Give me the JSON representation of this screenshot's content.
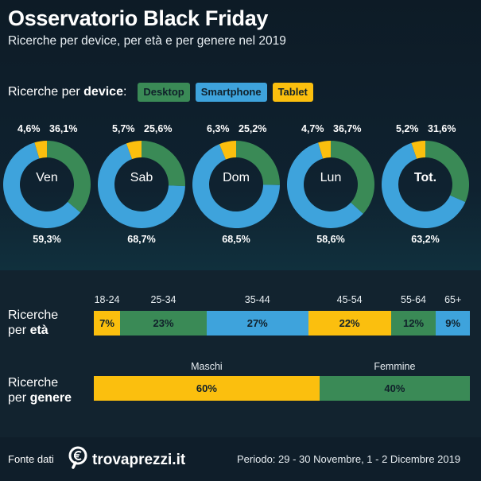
{
  "header": {
    "title": "Osservatorio Black Friday",
    "subtitle": "Ricerche per device, per età e per genere nel 2019"
  },
  "device_section": {
    "label_prefix": "Ricerche per ",
    "label_bold": "device",
    "label_suffix": ":",
    "legend": [
      {
        "name": "Desktop",
        "color": "#3a8a56"
      },
      {
        "name": "Smartphone",
        "color": "#3ea3dc"
      },
      {
        "name": "Tablet",
        "color": "#fbbf0e"
      }
    ]
  },
  "age_section": {
    "label_line1": "Ricerche",
    "label_line2_prefix": "per ",
    "label_line2_bold": "età"
  },
  "gender_section": {
    "label_line1": "Ricerche",
    "label_line2_prefix": "per ",
    "label_line2_bold": "genere"
  },
  "footer": {
    "source_label": "Fonte dati",
    "brand": "trovaprezzi.it",
    "period": "Periodo: 29 - 30 Novembre, 1 - 2 Dicembre 2019"
  },
  "chart_data": [
    {
      "type": "pie",
      "variant": "donut",
      "series_order": [
        "Tablet",
        "Desktop",
        "Smartphone"
      ],
      "colors": {
        "Tablet": "#fbbf0e",
        "Desktop": "#3a8a56",
        "Smartphone": "#3ea3dc"
      },
      "donuts": [
        {
          "center": "Ven",
          "bold": false,
          "values": {
            "Tablet": 4.6,
            "Desktop": 36.1,
            "Smartphone": 59.3
          },
          "labels": {
            "Tablet": "4,6%",
            "Desktop": "36,1%",
            "Smartphone": "59,3%"
          }
        },
        {
          "center": "Sab",
          "bold": false,
          "values": {
            "Tablet": 5.7,
            "Desktop": 25.6,
            "Smartphone": 68.7
          },
          "labels": {
            "Tablet": "5,7%",
            "Desktop": "25,6%",
            "Smartphone": "68,7%"
          }
        },
        {
          "center": "Dom",
          "bold": false,
          "values": {
            "Tablet": 6.3,
            "Desktop": 25.2,
            "Smartphone": 68.5
          },
          "labels": {
            "Tablet": "6,3%",
            "Desktop": "25,2%",
            "Smartphone": "68,5%"
          }
        },
        {
          "center": "Lun",
          "bold": false,
          "values": {
            "Tablet": 4.7,
            "Desktop": 36.7,
            "Smartphone": 58.6
          },
          "labels": {
            "Tablet": "4,7%",
            "Desktop": "36,7%",
            "Smartphone": "58,6%"
          }
        },
        {
          "center": "Tot.",
          "bold": true,
          "values": {
            "Tablet": 5.2,
            "Desktop": 31.6,
            "Smartphone": 63.2
          },
          "labels": {
            "Tablet": "5,2%",
            "Desktop": "31,6%",
            "Smartphone": "63,2%"
          }
        }
      ]
    },
    {
      "type": "bar",
      "variant": "stacked-100",
      "categories": [
        "18-24",
        "25-34",
        "35-44",
        "45-54",
        "55-64",
        "65+"
      ],
      "values": [
        7,
        23,
        27,
        22,
        12,
        9
      ],
      "labels": [
        "7%",
        "23%",
        "27%",
        "22%",
        "12%",
        "9%"
      ],
      "colors": [
        "#fbbf0e",
        "#3a8a56",
        "#3ea3dc",
        "#fbbf0e",
        "#3a8a56",
        "#3ea3dc"
      ]
    },
    {
      "type": "bar",
      "variant": "stacked-100",
      "categories": [
        "Maschi",
        "Femmine"
      ],
      "values": [
        60,
        40
      ],
      "labels": [
        "60%",
        "40%"
      ],
      "colors": [
        "#fbbf0e",
        "#3a8a56"
      ]
    }
  ]
}
